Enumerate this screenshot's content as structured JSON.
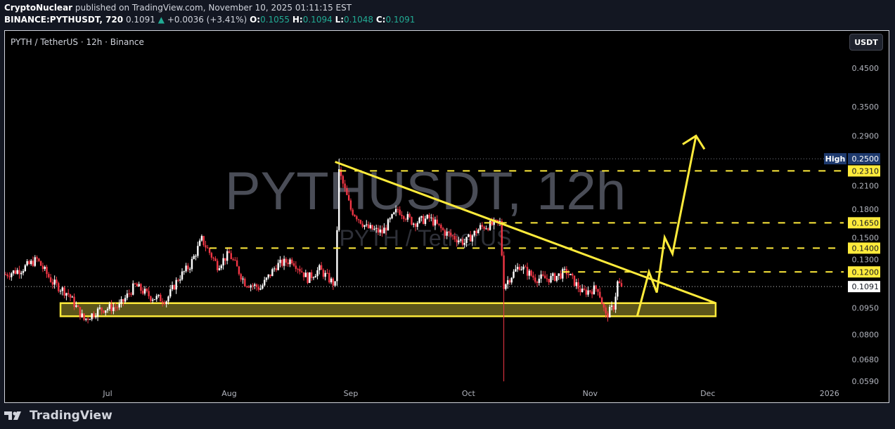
{
  "header": {
    "author": "CryptoNuclear",
    "published": "published on TradingView.com, November 10, 2025 01:11:15 EST",
    "symbol": "BINANCE:PYTHUSDT, 720",
    "last": "0.1091",
    "change": "+0.0036 (+3.41%)",
    "o_label": "O:",
    "o": "0.1055",
    "h_label": "H:",
    "h": "0.1094",
    "l_label": "L:",
    "l": "0.1048",
    "c_label": "C:",
    "c": "0.1091"
  },
  "legend": "PYTH / TetherUS · 12h · Binance",
  "unit_button": "USDT",
  "watermark": {
    "line1": "PYTHUSDT, 12h",
    "line2": "PYTH / TetherUS"
  },
  "footer": {
    "brand": "TradingView"
  },
  "colors": {
    "up": "#ffffff",
    "down": "#f23645",
    "annotation": "#ffeb3b",
    "zone_fill": "#5c551a",
    "high_tag": "#1e3a6e",
    "green": "#22ab94"
  },
  "chart_data": {
    "type": "candlestick",
    "interval": "12h",
    "y_scale": "log",
    "ylim": [
      0.059,
      0.45
    ],
    "y_ticks": [
      "0.4500",
      "0.3500",
      "0.2900",
      "0.2100",
      "0.1800",
      "0.1500",
      "0.1300",
      "0.0950",
      "0.0800",
      "0.0680",
      "0.0590"
    ],
    "x_ticks": [
      {
        "label": "Jul",
        "date": "2025-07-01"
      },
      {
        "label": "Aug",
        "date": "2025-08-01"
      },
      {
        "label": "Sep",
        "date": "2025-09-01"
      },
      {
        "label": "Oct",
        "date": "2025-10-01"
      },
      {
        "label": "Nov",
        "date": "2025-11-01"
      },
      {
        "label": "Dec",
        "date": "2025-12-01"
      },
      {
        "label": "2026",
        "date": "2026-01-01"
      }
    ],
    "approx_close_path": [
      [
        "2025-06-05",
        0.118
      ],
      [
        "2025-06-09",
        0.122
      ],
      [
        "2025-06-13",
        0.13
      ],
      [
        "2025-06-17",
        0.112
      ],
      [
        "2025-06-21",
        0.104
      ],
      [
        "2025-06-25",
        0.088
      ],
      [
        "2025-06-29",
        0.094
      ],
      [
        "2025-07-04",
        0.096
      ],
      [
        "2025-07-08",
        0.11
      ],
      [
        "2025-07-12",
        0.102
      ],
      [
        "2025-07-16",
        0.1
      ],
      [
        "2025-07-19",
        0.115
      ],
      [
        "2025-07-22",
        0.125
      ],
      [
        "2025-07-25",
        0.148
      ],
      [
        "2025-07-29",
        0.125
      ],
      [
        "2025-08-01",
        0.135
      ],
      [
        "2025-08-05",
        0.112
      ],
      [
        "2025-08-09",
        0.108
      ],
      [
        "2025-08-13",
        0.125
      ],
      [
        "2025-08-17",
        0.13
      ],
      [
        "2025-08-21",
        0.115
      ],
      [
        "2025-08-24",
        0.122
      ],
      [
        "2025-08-28",
        0.11
      ],
      [
        "2025-08-29",
        0.23
      ],
      [
        "2025-09-01",
        0.18
      ],
      [
        "2025-09-05",
        0.16
      ],
      [
        "2025-09-09",
        0.155
      ],
      [
        "2025-09-13",
        0.18
      ],
      [
        "2025-09-17",
        0.165
      ],
      [
        "2025-09-21",
        0.17
      ],
      [
        "2025-09-25",
        0.155
      ],
      [
        "2025-09-30",
        0.145
      ],
      [
        "2025-10-04",
        0.16
      ],
      [
        "2025-10-09",
        0.165
      ],
      [
        "2025-10-10",
        0.11
      ],
      [
        "2025-10-14",
        0.125
      ],
      [
        "2025-10-18",
        0.115
      ],
      [
        "2025-10-22",
        0.115
      ],
      [
        "2025-10-26",
        0.12
      ],
      [
        "2025-10-30",
        0.105
      ],
      [
        "2025-11-03",
        0.108
      ],
      [
        "2025-11-05",
        0.09
      ],
      [
        "2025-11-07",
        0.096
      ],
      [
        "2025-11-08",
        0.112
      ],
      [
        "2025-11-09",
        0.1091
      ]
    ],
    "extremes": {
      "high": {
        "date": "2025-08-29",
        "value": 0.25
      },
      "crash_low": {
        "date": "2025-10-10",
        "value": 0.059
      }
    },
    "price_tags": {
      "high_label": "High",
      "high": "0.2500",
      "current": "0.1091"
    },
    "levels": [
      {
        "value": 0.231,
        "label": "0.2310",
        "from": "2025-08-29"
      },
      {
        "value": 0.165,
        "label": "0.1650",
        "from": "2025-10-05"
      },
      {
        "value": 0.14,
        "label": "0.1400",
        "from": "2025-07-27"
      },
      {
        "value": 0.12,
        "label": "0.1200",
        "from": "2025-10-25"
      }
    ],
    "support_zone": {
      "low": 0.09,
      "high": 0.098,
      "from": "2025-06-19",
      "to": "2025-12-03"
    },
    "trendline": [
      [
        "2025-08-28",
        0.245
      ],
      [
        "2025-12-03",
        0.098
      ]
    ],
    "projection_path": [
      [
        "2025-11-13",
        0.09
      ],
      [
        "2025-11-16",
        0.12
      ],
      [
        "2025-11-18",
        0.105
      ],
      [
        "2025-11-20",
        0.15
      ],
      [
        "2025-11-22",
        0.135
      ],
      [
        "2025-11-28",
        0.29
      ]
    ]
  }
}
